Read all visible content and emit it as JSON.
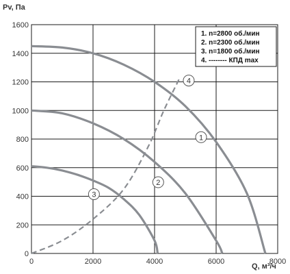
{
  "chart_data": {
    "type": "line",
    "xlabel": "Q, м³/ч",
    "ylabel": "Pv, Па",
    "xlim": [
      0,
      8000
    ],
    "ylim": [
      0,
      1600
    ],
    "x_ticks": [
      0,
      2000,
      4000,
      6000,
      8000
    ],
    "y_ticks": [
      0,
      200,
      400,
      600,
      800,
      1000,
      1200,
      1400,
      1600
    ],
    "grid": true,
    "legend_position": "top-right",
    "legend": [
      "1. n=2800 об./мин",
      "2. n=2300 об./мин",
      "3. n=1800 об./мин",
      "4. -------- КПД max"
    ],
    "series": [
      {
        "name": "1. n=2800 об./мин",
        "marker": "1",
        "style": "solid",
        "x": [
          0,
          1000,
          2000,
          3000,
          4000,
          5000,
          6000,
          7000,
          7600
        ],
        "y": [
          1450,
          1440,
          1400,
          1320,
          1200,
          1030,
          780,
          420,
          0
        ]
      },
      {
        "name": "2. n=2300 об./мин",
        "marker": "2",
        "style": "solid",
        "x": [
          0,
          1000,
          2000,
          3000,
          4000,
          5000,
          6000,
          6200
        ],
        "y": [
          1000,
          980,
          910,
          800,
          640,
          420,
          90,
          0
        ]
      },
      {
        "name": "3. n=1800 об./мин",
        "marker": "3",
        "style": "solid",
        "x": [
          0,
          500,
          1000,
          1500,
          2000,
          2500,
          3000,
          3500,
          4000,
          4100
        ],
        "y": [
          610,
          600,
          580,
          550,
          510,
          460,
          380,
          270,
          90,
          0
        ]
      },
      {
        "name": "4. -------- КПД max",
        "marker": "4",
        "style": "dashed",
        "x": [
          0,
          1000,
          2000,
          3000,
          3800,
          4300,
          4800
        ],
        "y": [
          0,
          90,
          240,
          450,
          750,
          1000,
          1220
        ]
      }
    ]
  },
  "colors": {
    "curve": "#8a8d92",
    "grid": "#1a1a1a",
    "text": "#333333",
    "background": "#ffffff"
  }
}
